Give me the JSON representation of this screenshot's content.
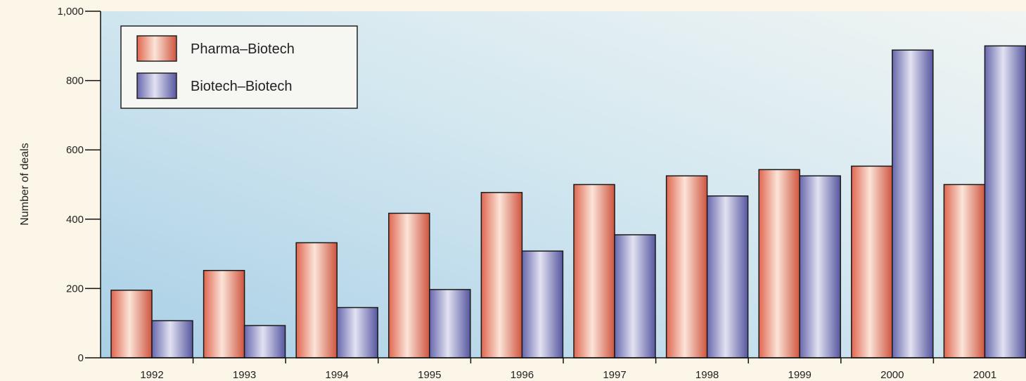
{
  "chart_data": {
    "type": "bar",
    "title": "",
    "xlabel": "",
    "ylabel": "Number of deals",
    "categories": [
      "1992",
      "1993",
      "1994",
      "1995",
      "1996",
      "1997",
      "1998",
      "1999",
      "2000",
      "2001"
    ],
    "series": [
      {
        "name": "Pharma–Biotech",
        "color": "#e8705a",
        "values": [
          195,
          252,
          332,
          417,
          477,
          500,
          525,
          543,
          553,
          500
        ]
      },
      {
        "name": "Biotech–Biotech",
        "color": "#6d6db3",
        "values": [
          107,
          93,
          145,
          197,
          308,
          355,
          467,
          525,
          888,
          900
        ]
      }
    ],
    "ylim": [
      0,
      1000
    ],
    "yticks": [
      0,
      200,
      400,
      600,
      800,
      1000
    ],
    "ytick_labels": [
      "0",
      "200",
      "400",
      "600",
      "800",
      "1,000"
    ],
    "legend": "top-left",
    "grid": false
  }
}
